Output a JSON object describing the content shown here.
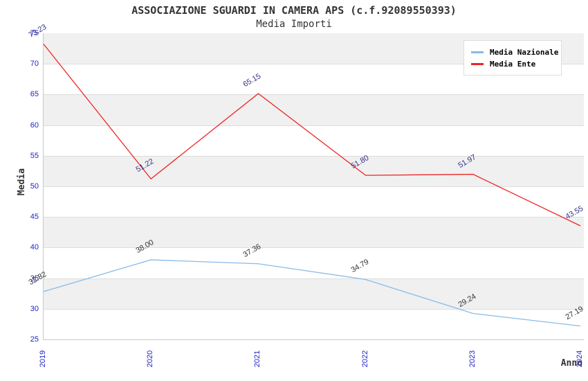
{
  "title": "ASSOCIAZIONE SGUARDI IN CAMERA APS (c.f.92089550393)",
  "subtitle": "Media Importi",
  "chart_data": {
    "type": "line",
    "x": [
      2019,
      2020,
      2021,
      2022,
      2023,
      2024
    ],
    "series": [
      {
        "name": "Media Nazionale",
        "color": "#88bbe8",
        "label_color": "#333333",
        "values": [
          32.82,
          38.0,
          37.36,
          34.79,
          29.24,
          27.19
        ],
        "labels": [
          "32.82",
          "38.00",
          "37.36",
          "34.79",
          "29.24",
          "27.19"
        ]
      },
      {
        "name": "Media Ente",
        "color": "#ee2424",
        "label_color": "#333388",
        "values": [
          73.23,
          51.22,
          65.15,
          51.8,
          51.97,
          43.55
        ],
        "labels": [
          "73.23",
          "51.22",
          "65.15",
          "51.80",
          "51.97",
          "43.55"
        ]
      }
    ],
    "xlabel": "Anno",
    "ylabel": "Media",
    "ylim": [
      25,
      75
    ],
    "ytick_step": 5,
    "xtick_labels": [
      "2019",
      "2020",
      "2021",
      "2022",
      "2023",
      "2024"
    ],
    "grid": "horizontal",
    "band_colors": [
      "#f0f0f0",
      "#ffffff"
    ],
    "tick_label_color": "#2222cc",
    "legend_position": "top-right"
  }
}
